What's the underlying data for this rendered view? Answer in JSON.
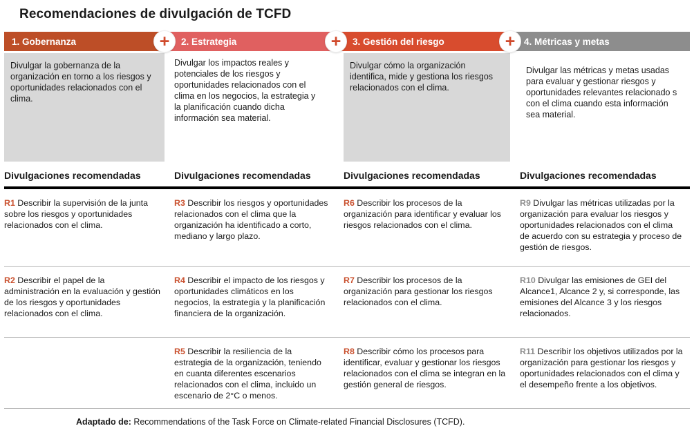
{
  "title": "Recomendaciones de divulgación de TCFD",
  "icons": {
    "plus": "+"
  },
  "colors": {
    "governance_header": "#bd4e27",
    "strategy_header": "#e06060",
    "risk_header": "#d84c2e",
    "metrics_header": "#8d8d8d",
    "accent_red": "#c9502e",
    "accent_gray": "#8d8d8d",
    "description_box_gray": "#d8d8d8"
  },
  "columns": [
    {
      "header": "1. Gobernanza",
      "description": "Divulgar la gobernanza de la organización en torno a los riesgos y oportunidades relacionados con el clima.",
      "subheading": "Divulgaciones recomendadas",
      "items": [
        {
          "code": "R1",
          "text": "Describir la supervisión de la junta sobre los riesgos y oportunidades relacionados con el clima."
        },
        {
          "code": "R2",
          "text": "Describir el papel de la administración en la evaluación y gestión de los riesgos y oportunidades relacionados con el clima."
        }
      ]
    },
    {
      "header": "2. Estrategia",
      "description": "Divulgar los impactos reales y potenciales de los riesgos y oportunidades relacionados con el clima en los negocios, la estrategia y la planificación cuando dicha información sea material.",
      "subheading": "Divulgaciones recomendadas",
      "items": [
        {
          "code": "R3",
          "text": "Describir los riesgos y oportunidades relacionados con el clima que la organización ha identificado a corto, mediano y largo plazo."
        },
        {
          "code": "R4",
          "text": "Describir el impacto de los riesgos y oportunidades climáticos en los negocios, la estrategia y la planificación financiera de la organización."
        },
        {
          "code": "R5",
          "text": "Describir la resiliencia de la estrategia de la organización, teniendo en cuanta diferentes escenarios relacionados con el clima, incluido un escenario de 2°C o menos."
        }
      ]
    },
    {
      "header": "3. Gestión del riesgo",
      "description": "Divulgar cómo la organización identifica, mide y gestiona los riesgos relacionados con el clima.",
      "subheading": "Divulgaciones recomendadas",
      "items": [
        {
          "code": "R6",
          "text": "Describir los procesos de la organización para identificar y evaluar los riesgos relacionados con el clima."
        },
        {
          "code": "R7",
          "text": "Describir los procesos de la organización para gestionar los riesgos relacionados con el clima."
        },
        {
          "code": "R8",
          "text": "Describir cómo los procesos para identificar, evaluar y gestionar los riesgos relacionados con el clima se integran en la gestión general de riesgos."
        }
      ]
    },
    {
      "header": "4. Métricas y metas",
      "description": "Divulgar las métricas y metas usadas para evaluar y gestionar riesgos y oportunidades relevantes relacionado s con el clima cuando esta información sea material.",
      "subheading": "Divulgaciones recomendadas",
      "items": [
        {
          "code": "R9",
          "text": "Divulgar las métricas utilizadas por la organización para evaluar los riesgos y oportunidades relacionados con el clima de acuerdo con su estrategia y proceso de gestión de riesgos."
        },
        {
          "code": "R10",
          "text": "Divulgar las emisiones de GEI del Alcance1, Alcance 2 y, si corresponde, las emisiones del Alcance 3 y los riesgos relacionados."
        },
        {
          "code": "R11",
          "text": "Describir los objetivos utilizados por la organización para gestionar los riesgos y oportunidades relacionados con el clima y el desempeño frente a los objetivos."
        }
      ]
    }
  ],
  "footer": {
    "label": "Adaptado de:",
    "text": " Recommendations of the Task Force on Climate-related Financial Disclosures (TCFD)."
  }
}
